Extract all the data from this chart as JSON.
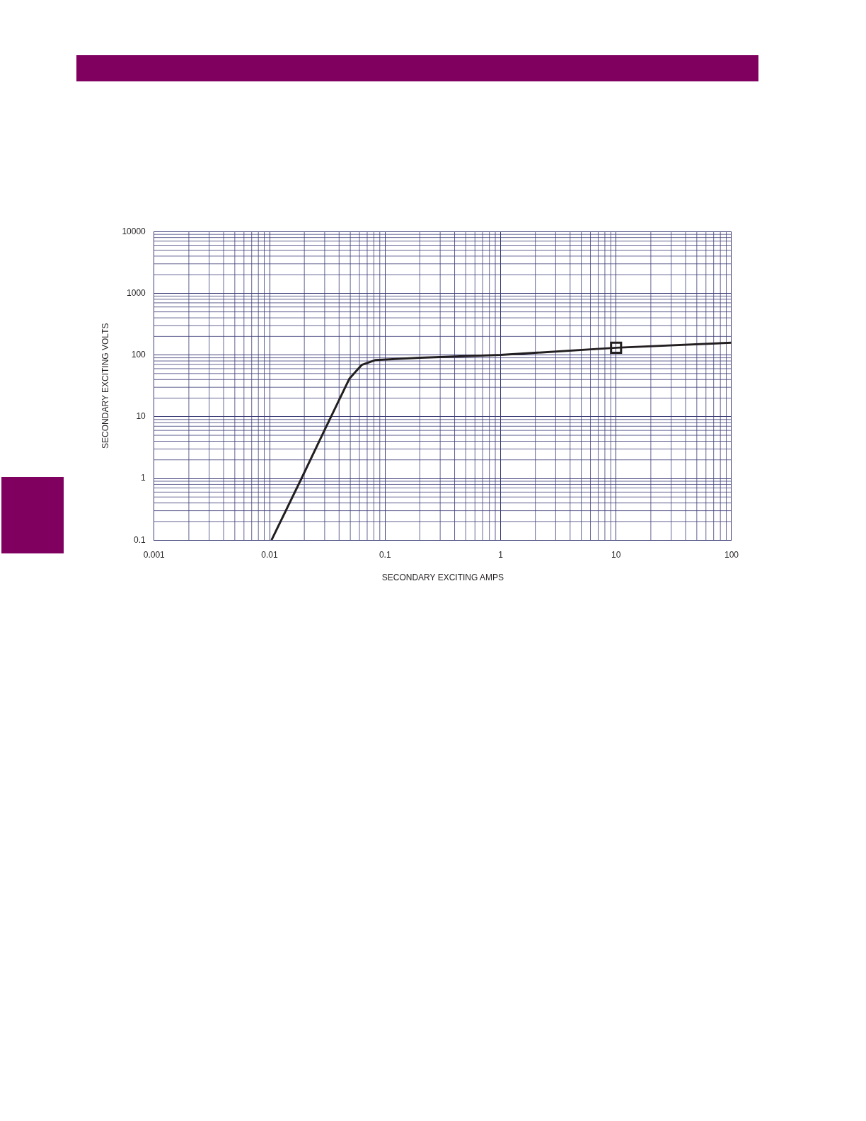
{
  "chart_data": {
    "type": "line",
    "xlabel": "SECONDARY EXCITING AMPS",
    "ylabel": "SECONDARY EXCITING VOLTS",
    "log": "xy",
    "grid": true,
    "legend": false,
    "xlim": [
      0.001,
      100
    ],
    "xticks": [
      0.001,
      0.01,
      0.1,
      1,
      10,
      100
    ],
    "ylim": [
      0.1,
      10000
    ],
    "yticks": [
      0.1,
      1,
      10,
      100,
      1000,
      10000
    ],
    "series": [
      {
        "color": "#231f20",
        "marker": "none",
        "x": [
          0.0104,
          0.0189,
          0.0297,
          0.049,
          0.0628,
          0.083,
          0.2,
          1,
          10,
          100
        ],
        "values": [
          0.1,
          1,
          5.9,
          41,
          69,
          83,
          90,
          100,
          131,
          158
        ]
      },
      {
        "type": "scatter",
        "color": "#231f20",
        "marker": "square",
        "x": [
          10
        ],
        "values": [
          131
        ]
      }
    ]
  }
}
